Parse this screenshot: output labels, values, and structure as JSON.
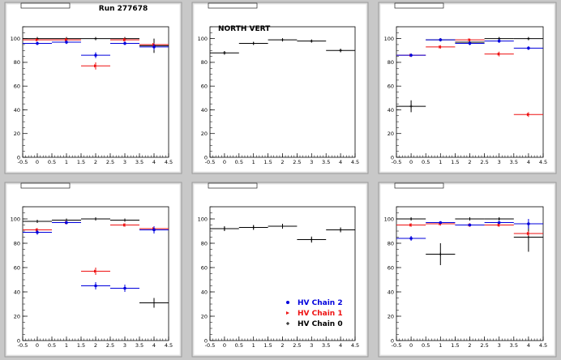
{
  "run_label": "Run 277678",
  "colors": {
    "chain0": "#000000",
    "chain1": "#ee1111",
    "chain2": "#0000dd",
    "pad_bg": "#ffffff",
    "canvas_bg": "#c8c8c8"
  },
  "legend": {
    "entries": [
      {
        "name": "HV Chain 2",
        "color": "#0000dd"
      },
      {
        "name": "HV Chain 1",
        "color": "#ee1111"
      },
      {
        "name": "HV Chain 0",
        "color": "#000000"
      }
    ]
  },
  "chart_data": [
    {
      "type": "scatter",
      "title": "",
      "annotation": "",
      "xlim": [
        -0.5,
        4.5
      ],
      "ylim": [
        0,
        110
      ],
      "x_ticks": [
        "-0.5",
        "0",
        "0.5",
        "1",
        "1.5",
        "2",
        "2.5",
        "3",
        "3.5",
        "4",
        "4.5"
      ],
      "y_ticks": [
        "0",
        "20",
        "40",
        "60",
        "80",
        "100"
      ],
      "series": [
        {
          "color": "#000000",
          "x": [
            0,
            1,
            2,
            3,
            4
          ],
          "y": [
            100,
            100,
            100,
            100,
            94
          ],
          "yerr": [
            0.8,
            0.8,
            0.8,
            0.8,
            6
          ]
        },
        {
          "color": "#ee1111",
          "x": [
            0,
            1,
            2,
            3,
            4
          ],
          "y": [
            99,
            99,
            77,
            99,
            95
          ],
          "yerr": [
            0.8,
            1.5,
            3,
            1.5,
            1.2
          ]
        },
        {
          "color": "#0000dd",
          "x": [
            0,
            1,
            2,
            3,
            4
          ],
          "y": [
            96,
            97,
            86,
            96,
            93
          ],
          "yerr": [
            1.5,
            1.5,
            2.5,
            1.5,
            2.5
          ]
        }
      ]
    },
    {
      "type": "scatter",
      "title": "",
      "annotation": "NORTH VERT",
      "xlim": [
        -0.5,
        4.5
      ],
      "ylim": [
        0,
        110
      ],
      "x_ticks": [
        "-0.5",
        "0",
        "0.5",
        "1",
        "1.5",
        "2",
        "2.5",
        "3",
        "3.5",
        "4",
        "4.5"
      ],
      "y_ticks": [
        "0",
        "20",
        "40",
        "60",
        "80",
        "100"
      ],
      "series": [
        {
          "color": "#000000",
          "x": [
            0,
            1,
            2,
            3,
            4
          ],
          "y": [
            88,
            96,
            99,
            98,
            90
          ],
          "yerr": [
            1.5,
            1,
            0.8,
            0.8,
            1.5
          ]
        }
      ]
    },
    {
      "type": "scatter",
      "title": "",
      "annotation": "",
      "xlim": [
        -0.5,
        4.5
      ],
      "ylim": [
        0,
        110
      ],
      "x_ticks": [
        "-0.5",
        "0",
        "0.5",
        "1",
        "1.5",
        "2",
        "2.5",
        "3",
        "3.5",
        "4",
        "4.5"
      ],
      "y_ticks": [
        "0",
        "20",
        "40",
        "60",
        "80",
        "100"
      ],
      "series": [
        {
          "color": "#000000",
          "x": [
            0,
            1,
            2,
            3,
            4
          ],
          "y": [
            43,
            99,
            97,
            100,
            100
          ],
          "yerr": [
            5,
            0.8,
            0.8,
            0.8,
            0.8
          ]
        },
        {
          "color": "#ee1111",
          "x": [
            0,
            1,
            2,
            3,
            4
          ],
          "y": [
            86,
            93,
            99,
            87,
            36
          ],
          "yerr": [
            1,
            1.5,
            1,
            2,
            2
          ]
        },
        {
          "color": "#0000dd",
          "x": [
            0,
            1,
            2,
            3,
            4
          ],
          "y": [
            86,
            99,
            96,
            98,
            92
          ],
          "yerr": [
            1.5,
            1,
            1.5,
            1.5,
            1.5
          ]
        }
      ]
    },
    {
      "type": "scatter",
      "title": "",
      "annotation": "",
      "xlim": [
        -0.5,
        4.5
      ],
      "ylim": [
        0,
        110
      ],
      "x_ticks": [
        "-0.5",
        "0",
        "0.5",
        "1",
        "1.5",
        "2",
        "2.5",
        "3",
        "3.5",
        "4",
        "4.5"
      ],
      "y_ticks": [
        "0",
        "20",
        "40",
        "60",
        "80",
        "100"
      ],
      "series": [
        {
          "color": "#000000",
          "x": [
            0,
            1,
            2,
            3,
            4
          ],
          "y": [
            98,
            99,
            100,
            99,
            31
          ],
          "yerr": [
            0.8,
            0.8,
            0.8,
            0.8,
            4
          ]
        },
        {
          "color": "#ee1111",
          "x": [
            0,
            1,
            2,
            3,
            4
          ],
          "y": [
            91,
            97,
            57,
            95,
            92
          ],
          "yerr": [
            1.5,
            1.5,
            3,
            1.5,
            1.5
          ]
        },
        {
          "color": "#0000dd",
          "x": [
            0,
            1,
            2,
            3,
            4
          ],
          "y": [
            89,
            97,
            45,
            43,
            91
          ],
          "yerr": [
            2,
            1.5,
            3,
            3,
            3
          ]
        }
      ]
    },
    {
      "type": "scatter",
      "title": "",
      "annotation": "",
      "xlim": [
        -0.5,
        4.5
      ],
      "ylim": [
        0,
        110
      ],
      "x_ticks": [
        "-0.5",
        "0",
        "0.5",
        "1",
        "1.5",
        "2",
        "2.5",
        "3",
        "3.5",
        "4",
        "4.5"
      ],
      "y_ticks": [
        "0",
        "20",
        "40",
        "60",
        "80",
        "100"
      ],
      "series": [
        {
          "color": "#000000",
          "x": [
            0,
            1,
            2,
            3,
            4
          ],
          "y": [
            92,
            93,
            94,
            83,
            91
          ],
          "yerr": [
            2,
            2,
            2,
            2.5,
            2
          ]
        }
      ]
    },
    {
      "type": "scatter",
      "title": "",
      "annotation": "",
      "xlim": [
        -0.5,
        4.5
      ],
      "ylim": [
        0,
        110
      ],
      "x_ticks": [
        "-0.5",
        "0",
        "0.5",
        "1",
        "1.5",
        "2",
        "2.5",
        "3",
        "3.5",
        "4",
        "4.5"
      ],
      "y_ticks": [
        "0",
        "20",
        "40",
        "60",
        "80",
        "100"
      ],
      "series": [
        {
          "color": "#000000",
          "x": [
            0,
            1,
            2,
            3,
            4
          ],
          "y": [
            100,
            71,
            100,
            100,
            85
          ],
          "yerr": [
            0.8,
            9,
            0.8,
            0.8,
            12
          ]
        },
        {
          "color": "#ee1111",
          "x": [
            0,
            1,
            2,
            3,
            4
          ],
          "y": [
            95,
            96,
            95,
            95,
            88
          ],
          "yerr": [
            1.5,
            1.5,
            1.5,
            1.5,
            2
          ]
        },
        {
          "color": "#0000dd",
          "x": [
            0,
            1,
            2,
            3,
            4
          ],
          "y": [
            84,
            97,
            95,
            97,
            96
          ],
          "yerr": [
            2,
            1,
            1,
            1,
            4
          ]
        }
      ]
    }
  ]
}
